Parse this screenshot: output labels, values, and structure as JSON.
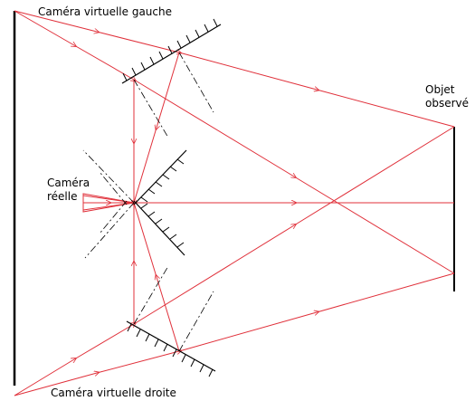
{
  "labels": {
    "left_virtual_camera": "Caméra virtuelle gauche",
    "object": [
      "Objet",
      "observé"
    ],
    "real_camera": [
      "Caméra",
      "réelle"
    ],
    "right_virtual_camera": "Caméra virtuelle droite"
  }
}
